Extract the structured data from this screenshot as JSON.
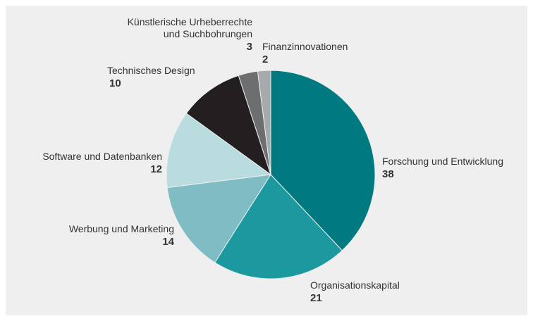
{
  "chart_data": {
    "type": "pie",
    "categories": [
      "Forschung und Entwicklung",
      "Organisationskapital",
      "Werbung und Marketing",
      "Software und Datenbanken",
      "Technisches Design",
      "Künstlerische Urheberrechte\nund Suchbohrungen",
      "Finanzinnovationen"
    ],
    "values": [
      38,
      21,
      14,
      12,
      10,
      3,
      2
    ],
    "colors": [
      "#007a80",
      "#1b999f",
      "#7fbcc3",
      "#b9dcdf",
      "#231f20",
      "#6d6e70",
      "#a7a9ac"
    ]
  }
}
